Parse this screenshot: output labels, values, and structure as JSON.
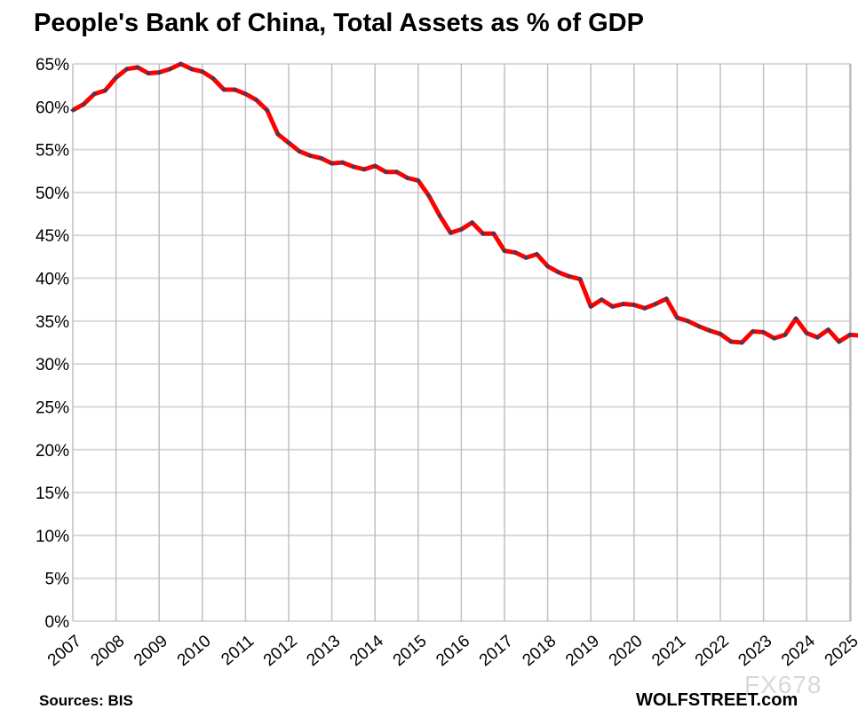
{
  "chart_data": {
    "type": "line",
    "title": "People's Bank of China, Total Assets as % of GDP",
    "xlabel": "",
    "ylabel": "",
    "ylim": [
      0,
      65
    ],
    "yticks": [
      "0%",
      "5%",
      "10%",
      "15%",
      "20%",
      "25%",
      "30%",
      "35%",
      "40%",
      "45%",
      "50%",
      "55%",
      "60%",
      "65%"
    ],
    "xticks": [
      "2007",
      "2008",
      "2009",
      "2010",
      "2011",
      "2012",
      "2013",
      "2014",
      "2015",
      "2016",
      "2017",
      "2018",
      "2019",
      "2020",
      "2021",
      "2022",
      "2023",
      "2024",
      "2025"
    ],
    "grid": true,
    "legend": "none",
    "frequency": "quarterly",
    "start": "2007",
    "series": [
      {
        "color": "#ff0000",
        "marker_color": "#2e4263",
        "values": [
          59.6,
          60.3,
          61.5,
          61.9,
          63.4,
          64.4,
          64.6,
          63.9,
          64.0,
          64.4,
          65.0,
          64.4,
          64.1,
          63.3,
          62.0,
          62.0,
          61.5,
          60.8,
          59.6,
          56.8,
          55.8,
          54.8,
          54.3,
          54.0,
          53.4,
          53.5,
          53.0,
          52.7,
          53.1,
          52.4,
          52.4,
          51.7,
          51.4,
          49.6,
          47.3,
          45.3,
          45.7,
          46.5,
          45.2,
          45.2,
          43.2,
          43.0,
          42.4,
          42.8,
          41.4,
          40.7,
          40.2,
          39.9,
          36.7,
          37.5,
          36.7,
          37.0,
          36.9,
          36.5,
          37.0,
          37.6,
          35.4,
          35.0,
          34.4,
          33.9,
          33.5,
          32.6,
          32.5,
          33.8,
          33.7,
          33.0,
          33.4,
          35.3,
          33.6,
          33.1,
          34.0,
          32.6,
          33.4,
          33.3
        ]
      }
    ]
  },
  "footer": {
    "source": "Sources: BIS",
    "brand": "WOLFSTREET.com",
    "watermark": "FX678"
  }
}
